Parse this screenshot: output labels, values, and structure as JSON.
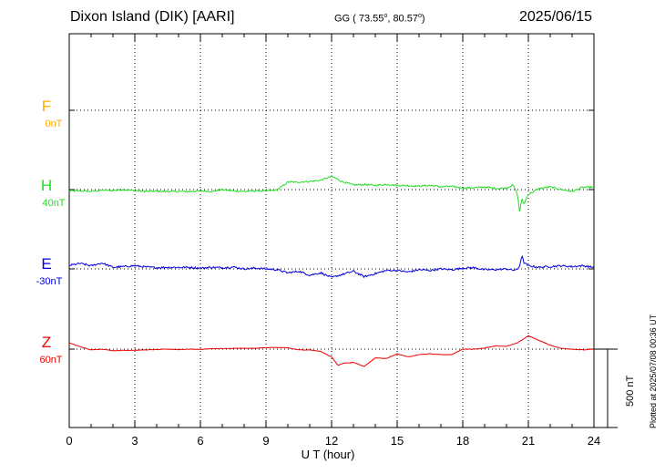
{
  "header": {
    "station": "Dixon Island (DIK)  [AARI]",
    "coords_prefix": "GG ( 73.55",
    "coords_mid": ",  80.57",
    "coords_end": ")",
    "degree": "o",
    "date": "2025/06/15"
  },
  "plotted_note": "Plotted at 2025/07/08 00:36 UT",
  "scale_bar_label": "500 nT",
  "chart_data": {
    "type": "line",
    "title": "",
    "xlabel": "U T (hour)",
    "xlim": [
      0,
      24
    ],
    "xticks": [
      0,
      3,
      6,
      9,
      12,
      15,
      18,
      21,
      24
    ],
    "xtick_labels": [
      "0",
      "3",
      "6",
      "9",
      "12",
      "15",
      "18",
      "21",
      "24"
    ],
    "grid": "dotted horizontal baselines per component, dotted vertical at each 3 hours",
    "scale_nT": 500,
    "series": [
      {
        "name": "F",
        "offset_label": "0nT",
        "color": "#ffaa00",
        "x": [],
        "values": []
      },
      {
        "name": "H",
        "offset_label": "40nT",
        "color": "#22dd22",
        "x": [
          0,
          0.5,
          1,
          1.5,
          2,
          2.5,
          3,
          3.5,
          4,
          4.5,
          5,
          5.5,
          6,
          6.5,
          7,
          7.5,
          8,
          8.5,
          9,
          9.5,
          10,
          10.5,
          11,
          11.5,
          12,
          12.5,
          13,
          13.5,
          14,
          14.5,
          15,
          15.5,
          16,
          16.5,
          17,
          17.5,
          18,
          18.5,
          19,
          19.5,
          20,
          20.3,
          20.5,
          20.6,
          20.7,
          20.8,
          21,
          21.5,
          22,
          22.5,
          23,
          23.5,
          24
        ],
        "values": [
          -8,
          -8,
          -12,
          -4,
          -6,
          0,
          -6,
          -12,
          -10,
          -12,
          -12,
          -12,
          -8,
          -12,
          0,
          -8,
          -12,
          -8,
          -8,
          -3,
          48,
          48,
          52,
          60,
          85,
          50,
          30,
          32,
          27,
          33,
          27,
          25,
          22,
          27,
          18,
          20,
          10,
          12,
          17,
          7,
          10,
          30,
          -30,
          -140,
          -60,
          -90,
          -30,
          7,
          17,
          0,
          -12,
          15,
          15
        ]
      },
      {
        "name": "E",
        "offset_label": "-30nT",
        "color": "#0000dd",
        "x": [
          0,
          0.5,
          1,
          1.5,
          2,
          2.5,
          3,
          3.5,
          4,
          4.5,
          5,
          5.5,
          6,
          6.5,
          7,
          7.5,
          8,
          8.5,
          9,
          9.5,
          10,
          10.5,
          11,
          11.5,
          12,
          12.5,
          13,
          13.5,
          14,
          14.5,
          15,
          15.5,
          16,
          16.5,
          17,
          17.5,
          18,
          18.5,
          19,
          19.5,
          20,
          20.3,
          20.5,
          20.6,
          20.7,
          20.8,
          21,
          21.5,
          22,
          22.5,
          23,
          23.5,
          24
        ],
        "values": [
          22,
          35,
          20,
          38,
          10,
          15,
          20,
          12,
          8,
          10,
          10,
          10,
          5,
          10,
          8,
          12,
          0,
          5,
          0,
          -5,
          -25,
          -15,
          -40,
          -25,
          -55,
          -35,
          -15,
          -50,
          -30,
          -10,
          -10,
          -20,
          -5,
          -10,
          0,
          -5,
          5,
          8,
          -5,
          -5,
          0,
          -8,
          -5,
          20,
          85,
          40,
          20,
          10,
          15,
          20,
          15,
          20,
          10
        ]
      },
      {
        "name": "Z",
        "offset_label": "60nT",
        "color": "#ee0000",
        "x": [
          0,
          0.5,
          1,
          1.5,
          2,
          2.5,
          3,
          3.5,
          4,
          4.5,
          5,
          5.5,
          6,
          6.5,
          7,
          7.5,
          8,
          8.5,
          9,
          9.5,
          10,
          10.5,
          11,
          11.5,
          12,
          12.3,
          12.5,
          13,
          13.5,
          14,
          14.5,
          15,
          15.5,
          16,
          16.5,
          17,
          17.5,
          18,
          18.5,
          19,
          19.5,
          20,
          20.5,
          21,
          21.5,
          22,
          22.5,
          23,
          23.5,
          24
        ],
        "values": [
          40,
          15,
          -5,
          0,
          -10,
          -8,
          -7,
          -5,
          -3,
          0,
          -3,
          0,
          -2,
          3,
          3,
          5,
          5,
          5,
          10,
          10,
          8,
          -5,
          -5,
          -15,
          -50,
          -105,
          -90,
          -85,
          -110,
          -55,
          -60,
          -30,
          -50,
          -35,
          -30,
          -35,
          -35,
          0,
          0,
          7,
          20,
          18,
          40,
          85,
          55,
          25,
          5,
          0,
          -5,
          0
        ]
      }
    ]
  }
}
